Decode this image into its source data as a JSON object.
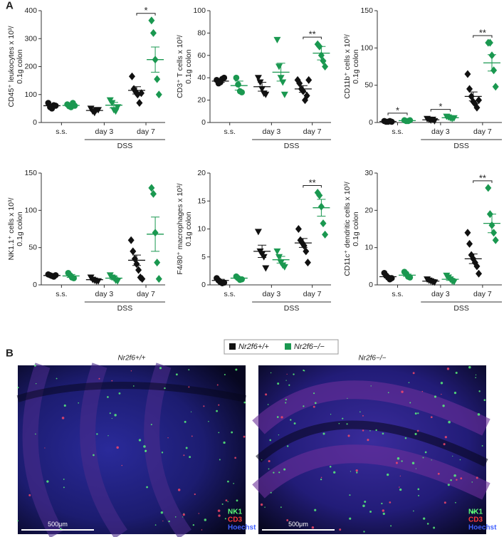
{
  "panel_labels": [
    "A",
    "B"
  ],
  "chart_data": [
    {
      "type": "dotplot",
      "ylabel": [
        "CD45⁺ leukocytes x 10³/",
        "0.1g colon"
      ],
      "categories": [
        "s.s.",
        "day 3",
        "day 7"
      ],
      "group_label": "DSS",
      "markers": [
        "circle",
        "triangle",
        "diamond"
      ],
      "significance": [
        null,
        null,
        "*"
      ],
      "ylim": [
        0,
        400
      ],
      "yticks": [
        0,
        100,
        200,
        300,
        400
      ],
      "series": [
        {
          "name": "Nr2f6+/+",
          "color": "#111111",
          "points": [
            [
              70,
              55,
              50,
              62,
              60
            ],
            [
              50,
              40,
              35,
              45,
              45
            ],
            [
              165,
              120,
              110,
              100,
              70,
              105
            ]
          ],
          "mean": [
            60,
            43,
            115
          ],
          "sem": [
            4,
            3,
            13
          ]
        },
        {
          "name": "Nr2f6−/−",
          "color": "#1a9850",
          "points": [
            [
              65,
              58,
              55,
              70,
              60
            ],
            [
              80,
              70,
              45,
              40,
              55
            ],
            [
              365,
              320,
              225,
              155,
              100
            ]
          ],
          "mean": [
            61,
            62,
            225
          ],
          "sem": [
            3,
            10,
            45
          ]
        }
      ]
    },
    {
      "type": "dotplot",
      "ylabel": [
        "CD3⁺ T cells x 10³/",
        "0.1g colon"
      ],
      "categories": [
        "s.s.",
        "day 3",
        "day 7"
      ],
      "group_label": "DSS",
      "markers": [
        "circle",
        "triangle",
        "diamond"
      ],
      "significance": [
        null,
        null,
        "**"
      ],
      "ylim": [
        0,
        100
      ],
      "yticks": [
        0,
        20,
        40,
        60,
        80,
        100
      ],
      "series": [
        {
          "name": "Nr2f6+/+",
          "color": "#111111",
          "points": [
            [
              38,
              35,
              36,
              39,
              40
            ],
            [
              40,
              36,
              30,
              26,
              25
            ],
            [
              38,
              35,
              30,
              28,
              20,
              24,
              38
            ]
          ],
          "mean": [
            37,
            32,
            30
          ],
          "sem": [
            1,
            4,
            3
          ]
        },
        {
          "name": "Nr2f6−/−",
          "color": "#1a9850",
          "points": [
            [
              40,
              34,
              28,
              27
            ],
            [
              74,
              50,
              40,
              36,
              25
            ],
            [
              70,
              68,
              60,
              55,
              50
            ]
          ],
          "mean": [
            33,
            45,
            62
          ],
          "sem": [
            4,
            8,
            6
          ]
        }
      ]
    },
    {
      "type": "dotplot",
      "ylabel": [
        "CD11b⁺ cells x 10³/",
        "0.1g colon"
      ],
      "categories": [
        "s.s.",
        "day 3",
        "day 7"
      ],
      "group_label": "DSS",
      "markers": [
        "circle",
        "triangle",
        "diamond"
      ],
      "significance": [
        "*",
        "*",
        "**"
      ],
      "ylim": [
        0,
        150
      ],
      "yticks": [
        0,
        50,
        100,
        150
      ],
      "series": [
        {
          "name": "Nr2f6+/+",
          "color": "#111111",
          "points": [
            [
              2,
              1,
              1,
              2,
              1
            ],
            [
              5,
              4,
              3,
              4,
              2
            ],
            [
              65,
              45,
              35,
              28,
              25,
              20,
              30
            ]
          ],
          "mean": [
            1.4,
            3.6,
            35
          ],
          "sem": [
            0.2,
            0.5,
            6
          ]
        },
        {
          "name": "Nr2f6−/−",
          "color": "#1a9850",
          "points": [
            [
              3,
              2,
              2,
              3
            ],
            [
              8,
              7,
              6,
              5,
              6
            ],
            [
              107,
              107,
              90,
              70,
              48
            ]
          ],
          "mean": [
            2.5,
            6.4,
            80
          ],
          "sem": [
            0.3,
            0.5,
            11
          ]
        }
      ]
    },
    {
      "type": "dotplot",
      "ylabel": [
        "NK1.1⁺ cells x 10³/",
        "0.1g colon"
      ],
      "categories": [
        "s.s.",
        "day 3",
        "day 7"
      ],
      "group_label": "DSS",
      "markers": [
        "circle",
        "triangle",
        "diamond"
      ],
      "significance": [
        null,
        null,
        null
      ],
      "ylim": [
        0,
        150
      ],
      "yticks": [
        0,
        50,
        100,
        150
      ],
      "series": [
        {
          "name": "Nr2f6+/+",
          "color": "#111111",
          "points": [
            [
              14,
              13,
              12,
              11,
              13
            ],
            [
              10,
              7,
              6,
              5,
              5
            ],
            [
              60,
              45,
              35,
              28,
              20,
              10,
              8
            ]
          ],
          "mean": [
            12.6,
            7,
            33
          ],
          "sem": [
            0.5,
            1,
            7
          ]
        },
        {
          "name": "Nr2f6−/−",
          "color": "#1a9850",
          "points": [
            [
              16,
              13,
              10,
              9
            ],
            [
              13,
              10,
              9,
              6,
              5
            ],
            [
              130,
              122,
              70,
              30,
              8
            ]
          ],
          "mean": [
            12,
            9,
            68
          ],
          "sem": [
            2,
            1.5,
            23
          ]
        }
      ]
    },
    {
      "type": "dotplot",
      "ylabel": [
        "F4/80⁺ macrophages x 10³/",
        "0.1g colon"
      ],
      "categories": [
        "s.s.",
        "day 3",
        "day 7"
      ],
      "group_label": "DSS",
      "markers": [
        "circle",
        "triangle",
        "diamond"
      ],
      "significance": [
        null,
        null,
        "**"
      ],
      "ylim": [
        0,
        20
      ],
      "yticks": [
        0,
        5,
        10,
        15,
        20
      ],
      "series": [
        {
          "name": "Nr2f6+/+",
          "color": "#111111",
          "points": [
            [
              1.2,
              0.8,
              0.5,
              0.3,
              0.4
            ],
            [
              9.5,
              6,
              5.5,
              5,
              3
            ],
            [
              10,
              8,
              7.5,
              7,
              6,
              4
            ]
          ],
          "mean": [
            0.8,
            6,
            7.5
          ],
          "sem": [
            0.2,
            1.1,
            0.8
          ]
        },
        {
          "name": "Nr2f6−/−",
          "color": "#1a9850",
          "points": [
            [
              1.5,
              1.2,
              0.9,
              1.0
            ],
            [
              6,
              5,
              4,
              3.5,
              3.2
            ],
            [
              16.5,
              16,
              14,
              11,
              9
            ]
          ],
          "mean": [
            1.2,
            4.5,
            13.8
          ],
          "sem": [
            0.15,
            0.6,
            1.5
          ]
        }
      ]
    },
    {
      "type": "dotplot",
      "ylabel": [
        "CD11c⁺ dendritic cells x 10³/",
        "0.1g colon"
      ],
      "categories": [
        "s.s.",
        "day 3",
        "day 7"
      ],
      "group_label": "DSS",
      "markers": [
        "circle",
        "triangle",
        "diamond"
      ],
      "significance": [
        null,
        null,
        "**"
      ],
      "ylim": [
        0,
        30
      ],
      "yticks": [
        0,
        10,
        20,
        30
      ],
      "series": [
        {
          "name": "Nr2f6+/+",
          "color": "#111111",
          "points": [
            [
              3.2,
              2.5,
              2,
              1.5,
              1.8
            ],
            [
              1.5,
              1.2,
              1,
              0.8,
              0.7
            ],
            [
              14,
              11,
              8,
              7,
              6,
              5,
              3
            ]
          ],
          "mean": [
            2.2,
            1.0,
            7
          ],
          "sem": [
            0.3,
            0.15,
            1.3
          ]
        },
        {
          "name": "Nr2f6−/−",
          "color": "#1a9850",
          "points": [
            [
              3.5,
              3,
              2.2,
              2
            ],
            [
              2.5,
              2,
              1.5,
              1,
              0.8
            ],
            [
              26,
              19,
              16,
              14,
              12
            ]
          ],
          "mean": [
            2.6,
            1.5,
            16.5
          ],
          "sem": [
            0.3,
            0.3,
            2.5
          ]
        }
      ]
    }
  ],
  "panel_b": {
    "images": [
      {
        "title": "Nr2f6+/+",
        "channels": [
          "NK1",
          "CD3",
          "Hoechst"
        ],
        "scale_bar": "500μm"
      },
      {
        "title": "Nr2f6−/−",
        "channels": [
          "NK1",
          "CD3",
          "Hoechst"
        ],
        "scale_bar": "500μm"
      }
    ]
  }
}
